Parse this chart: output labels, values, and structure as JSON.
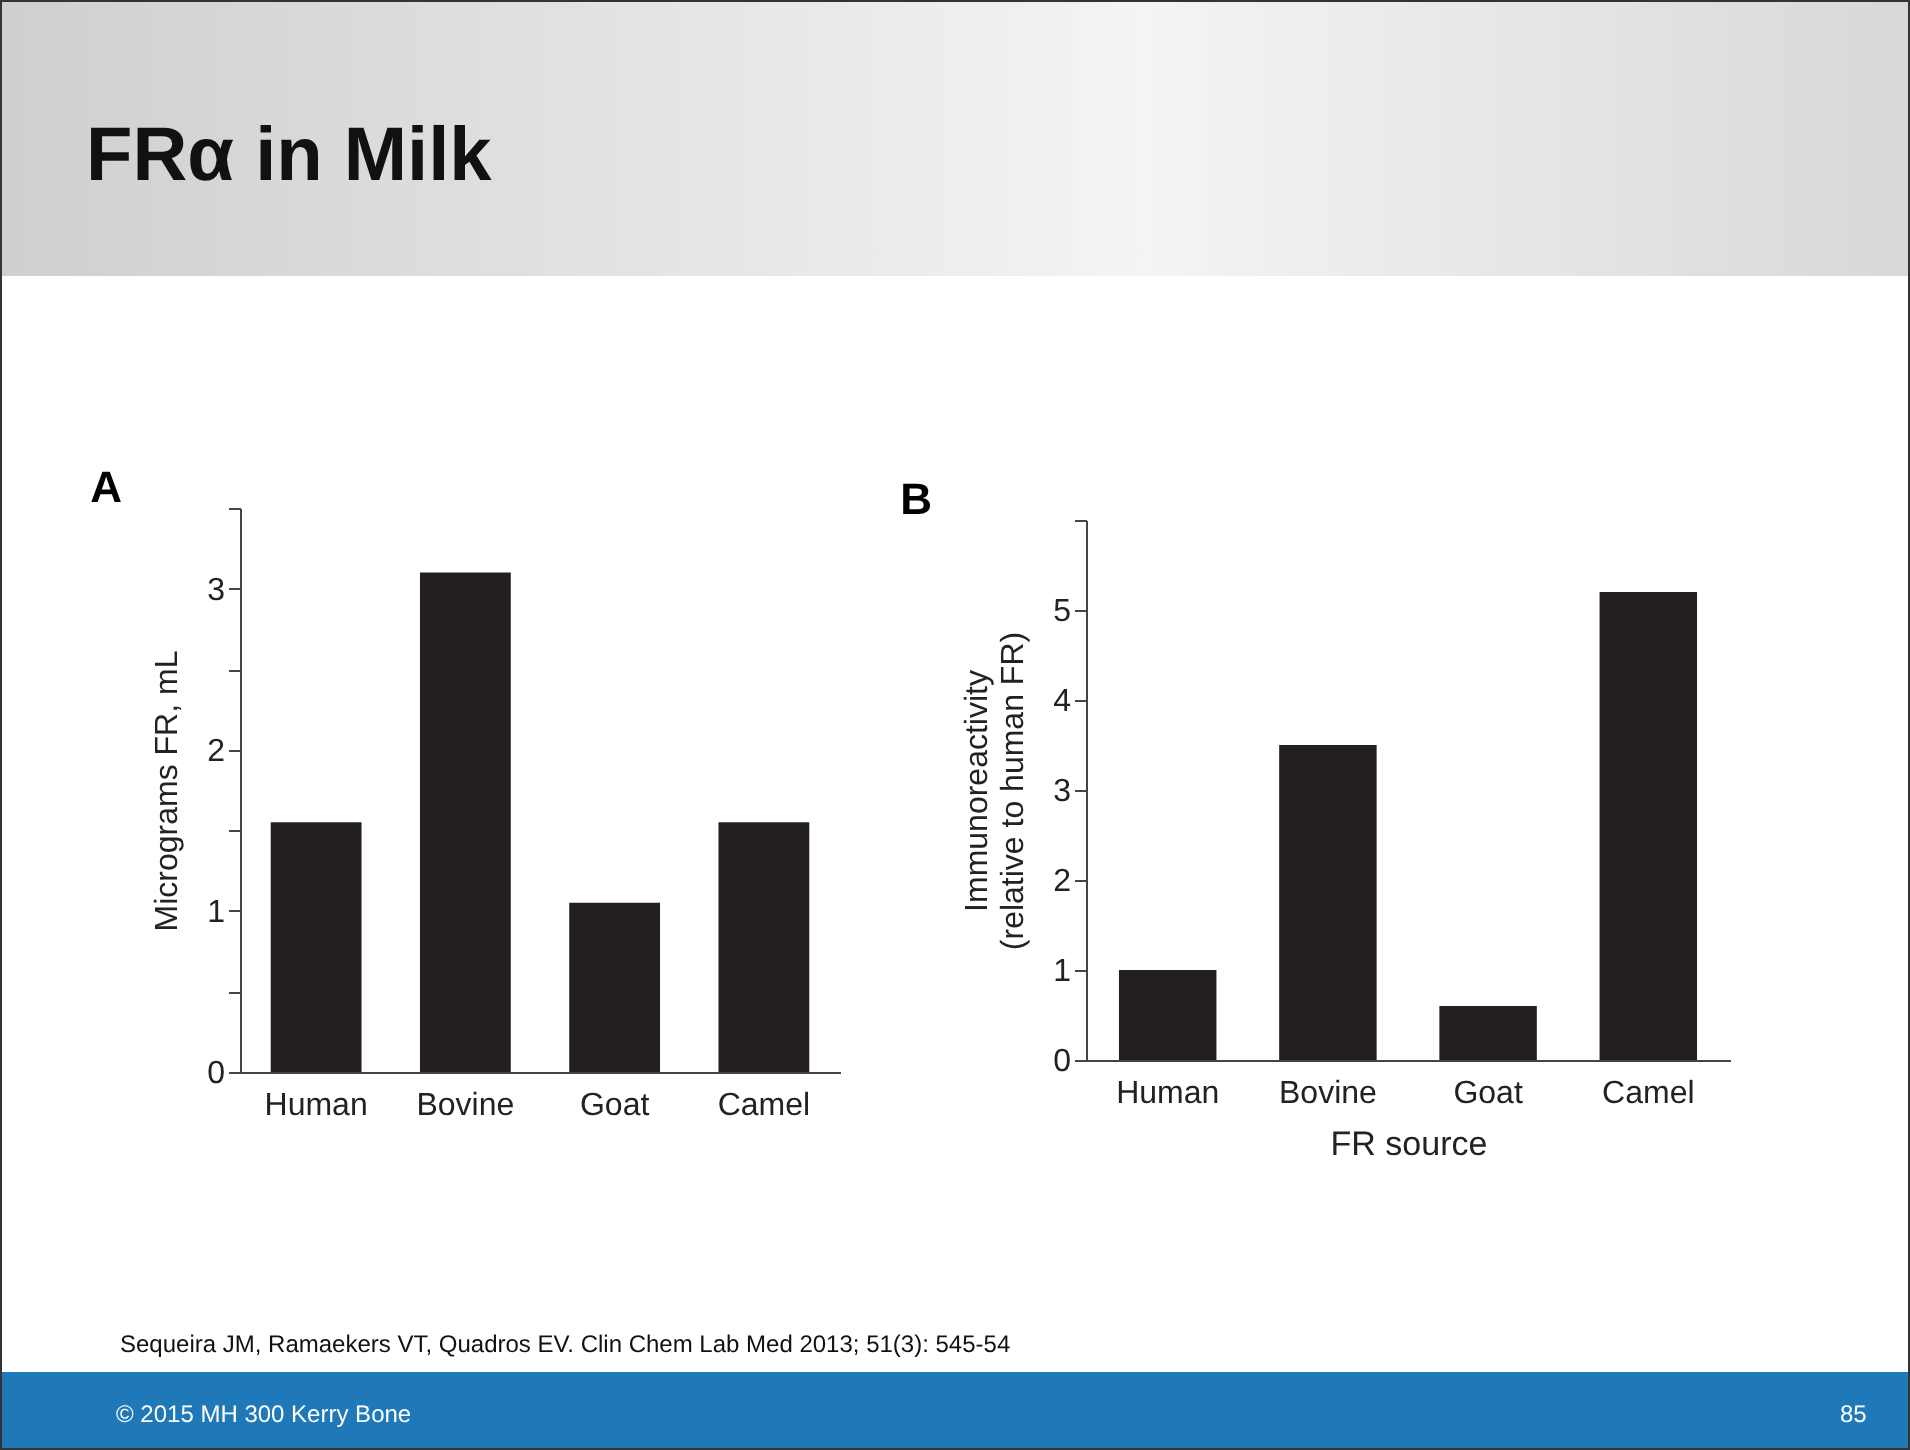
{
  "chart_data": [
    {
      "type": "bar",
      "title": "A",
      "categories": [
        "Human",
        "Bovine",
        "Goat",
        "Camel"
      ],
      "values": [
        1.55,
        3.1,
        1.05,
        1.55
      ],
      "color": "#231f20",
      "ylabel": "Micrograms FR, mL",
      "ylim": [
        0,
        3.5
      ],
      "yticks": [
        0,
        {
          "value": 0.5,
          "label": null
        },
        1,
        {
          "value": 1.5,
          "label": null
        },
        2,
        {
          "value": 2.5,
          "label": null
        },
        3,
        {
          "value": 3.5,
          "label": null
        }
      ],
      "annotations": [
        "FRα in Milk",
        "Sequeira JM, Ramaekers VT, Quadros EV. Clin Chem Lab Med 2013; 51(3): 545-54",
        "© 2015 MH 300 Kerry Bone",
        "85"
      ]
    },
    {
      "type": "bar",
      "title": "B",
      "categories": [
        "Human",
        "Bovine",
        "Goat",
        "Camel"
      ],
      "values": [
        1.0,
        3.5,
        0.6,
        5.2
      ],
      "color": "#231f20",
      "xlabel": "FR source",
      "ylabel": "Immunoreactivity\n(relative to human FR)",
      "ylim": [
        0,
        6
      ],
      "yticks": [
        0,
        1,
        2,
        3,
        4,
        5,
        {
          "value": 6,
          "label": null
        }
      ]
    }
  ]
}
